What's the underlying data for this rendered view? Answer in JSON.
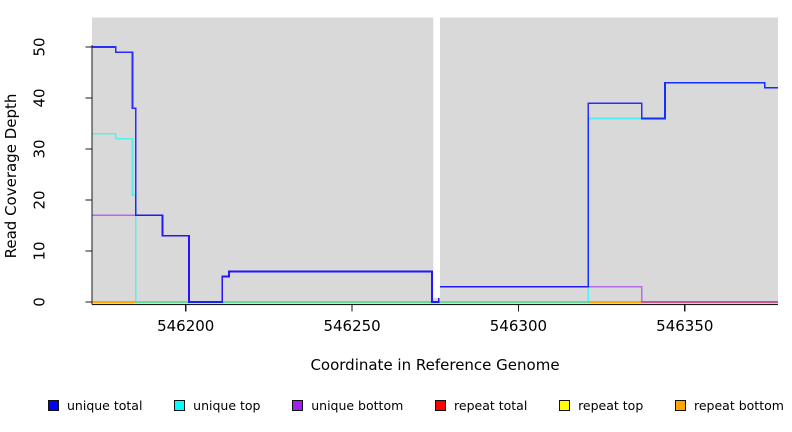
{
  "axes": {
    "x_label": "Coordinate in Reference Genome",
    "y_label": "Read Coverage Depth"
  },
  "chart_data": {
    "type": "line",
    "step": "after",
    "title": "",
    "xlabel": "Coordinate in Reference Genome",
    "ylabel": "Read Coverage Depth",
    "xlim": [
      546172,
      546378
    ],
    "ylim": [
      0,
      55
    ],
    "x_ticks": [
      546200,
      546250,
      546300,
      546350
    ],
    "y_ticks": [
      0,
      10,
      20,
      30,
      40,
      50
    ],
    "grid": false,
    "plot_bg": "#d9d9d9",
    "masked_region_x": [
      546274.4,
      546276.4
    ],
    "legend_position": "bottom",
    "series": [
      {
        "name": "repeat total",
        "color": "#ff0000",
        "alpha": 1.0,
        "points": [
          [
            546172,
            0
          ],
          [
            546378,
            0
          ]
        ]
      },
      {
        "name": "repeat top",
        "color": "#ffff00",
        "alpha": 0.7,
        "points": [
          [
            546172,
            0
          ],
          [
            546378,
            0
          ]
        ]
      },
      {
        "name": "repeat bottom",
        "color": "#ffa500",
        "alpha": 0.8,
        "points": [
          [
            546172,
            0
          ],
          [
            546378,
            0
          ]
        ]
      },
      {
        "name": "unique bottom",
        "color": "#a020f0",
        "alpha": 0.6,
        "points": [
          [
            546172,
            17
          ],
          [
            546193,
            13
          ],
          [
            546201,
            0
          ],
          [
            546211,
            5
          ],
          [
            546213,
            6
          ],
          [
            546274,
            0
          ],
          [
            546276,
            3
          ],
          [
            546337,
            0
          ],
          [
            546378,
            0
          ]
        ]
      },
      {
        "name": "unique top",
        "color": "#00ffff",
        "alpha": 0.6,
        "points": [
          [
            546172,
            33
          ],
          [
            546179,
            32
          ],
          [
            546184,
            21
          ],
          [
            546185,
            0
          ],
          [
            546321,
            36
          ],
          [
            546344,
            43
          ],
          [
            546374,
            42
          ],
          [
            546378,
            42
          ]
        ]
      },
      {
        "name": "unique total",
        "color": "#0000ff",
        "alpha": 0.8,
        "points": [
          [
            546172,
            50
          ],
          [
            546179,
            49
          ],
          [
            546184,
            38
          ],
          [
            546185,
            17
          ],
          [
            546193,
            13
          ],
          [
            546201,
            0
          ],
          [
            546211,
            5
          ],
          [
            546213,
            6
          ],
          [
            546274,
            0
          ],
          [
            546276,
            3
          ],
          [
            546321,
            39
          ],
          [
            546337,
            36
          ],
          [
            546344,
            43
          ],
          [
            546374,
            42
          ],
          [
            546378,
            42
          ]
        ]
      }
    ],
    "legend": [
      {
        "label": "unique total",
        "color": "#0000ff"
      },
      {
        "label": "unique top",
        "color": "#00ffff"
      },
      {
        "label": "unique bottom",
        "color": "#a020f0"
      },
      {
        "label": "repeat total",
        "color": "#ff0000"
      },
      {
        "label": "repeat top",
        "color": "#ffff00"
      },
      {
        "label": "repeat bottom",
        "color": "#ffa500"
      }
    ]
  }
}
